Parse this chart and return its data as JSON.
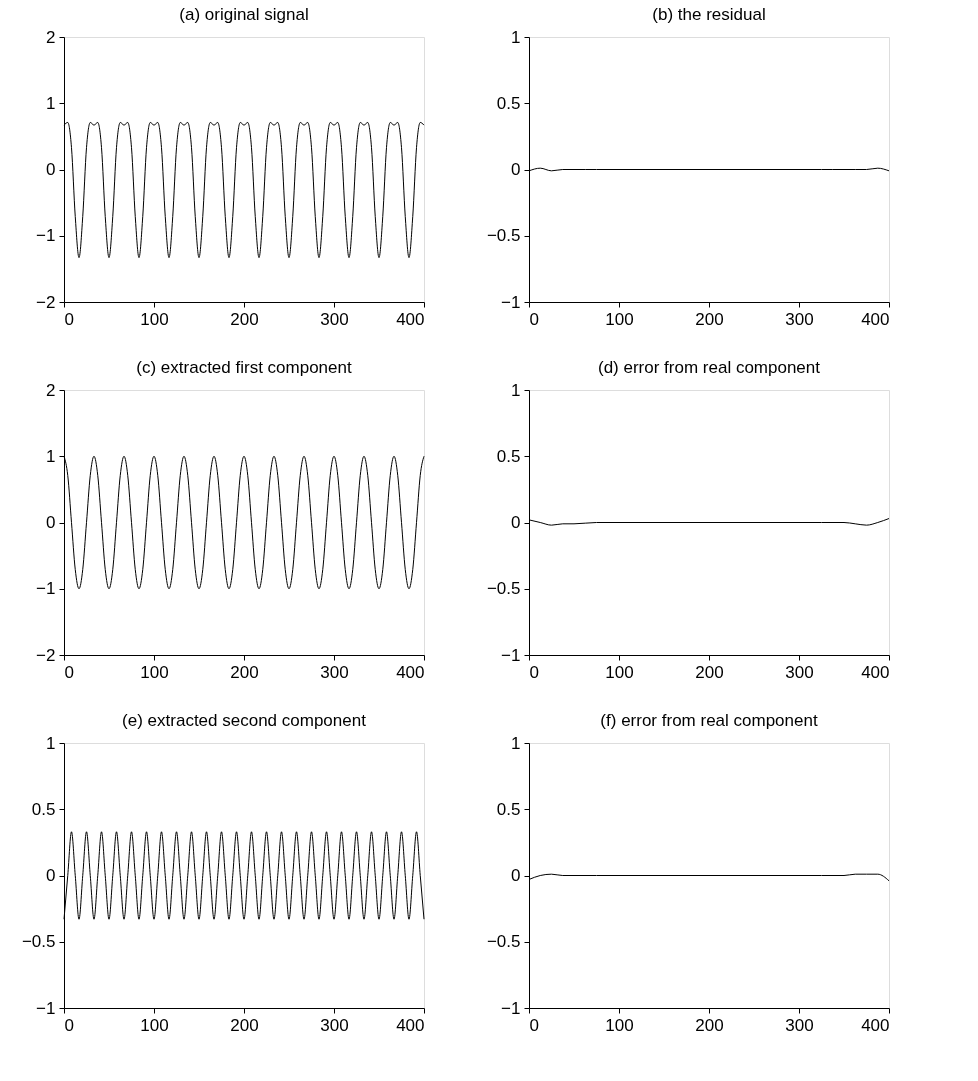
{
  "chart_data": [
    {
      "type": "line",
      "title": "(a) original signal",
      "xlim": [
        0,
        400
      ],
      "ylim": [
        -2,
        2
      ],
      "xticks": [
        0,
        100,
        200,
        300,
        400
      ],
      "yticks": [
        -2,
        -1,
        0,
        1,
        2
      ],
      "grid": false,
      "x": [
        0,
        4.17,
        8.33,
        12.5,
        16.67,
        20.83,
        25,
        29.17,
        33.33,
        37.5,
        41.67,
        45.83,
        50,
        54.17,
        58.33,
        62.5,
        66.67,
        70.83,
        75,
        79.17,
        83.33,
        87.5,
        91.67,
        95.83,
        100,
        104.17,
        108.33,
        112.5,
        116.67,
        120.83,
        125,
        129.17,
        133.33,
        137.5,
        141.67,
        145.83,
        150,
        154.17,
        158.33,
        162.5,
        166.67,
        170.83,
        175,
        179.17,
        183.33,
        187.5,
        191.67,
        195.83,
        200,
        204.17,
        208.33,
        212.5,
        216.67,
        220.83,
        225,
        229.17,
        233.33,
        237.5,
        241.67,
        245.83,
        250,
        254.17,
        258.33,
        262.5,
        266.67,
        270.83,
        275,
        279.17,
        283.33,
        287.5,
        291.67,
        295.83,
        300,
        304.17,
        308.33,
        312.5,
        316.67,
        320.83,
        325,
        329.17,
        333.33,
        337.5,
        341.67,
        345.83,
        350,
        354.17,
        358.33,
        362.5,
        366.67,
        370.83,
        375,
        379.17,
        383.33,
        387.5,
        391.67,
        395.83,
        400
      ],
      "series": [
        {
          "color": "#000000",
          "values": [
            0.67,
            0.71,
            0.33,
            -0.71,
            -1.33,
            -0.71,
            0.33,
            0.71,
            0.67,
            0.71,
            0.33,
            -0.71,
            -1.33,
            -0.71,
            0.33,
            0.71,
            0.67,
            0.71,
            0.33,
            -0.71,
            -1.33,
            -0.71,
            0.33,
            0.71,
            0.67,
            0.71,
            0.33,
            -0.71,
            -1.33,
            -0.71,
            0.33,
            0.71,
            0.67,
            0.71,
            0.33,
            -0.71,
            -1.33,
            -0.71,
            0.33,
            0.71,
            0.67,
            0.71,
            0.33,
            -0.71,
            -1.33,
            -0.71,
            0.33,
            0.71,
            0.67,
            0.71,
            0.33,
            -0.71,
            -1.33,
            -0.71,
            0.33,
            0.71,
            0.67,
            0.71,
            0.33,
            -0.71,
            -1.33,
            -0.71,
            0.33,
            0.71,
            0.67,
            0.71,
            0.33,
            -0.71,
            -1.33,
            -0.71,
            0.33,
            0.71,
            0.67,
            0.71,
            0.33,
            -0.71,
            -1.33,
            -0.71,
            0.33,
            0.71,
            0.67,
            0.71,
            0.33,
            -0.71,
            -1.33,
            -0.71,
            0.33,
            0.71,
            0.67,
            0.71,
            0.33,
            -0.71,
            -1.33,
            -0.71,
            0.33,
            0.71,
            0.67
          ]
        }
      ]
    },
    {
      "type": "line",
      "title": "(b) the residual",
      "xlim": [
        0,
        400
      ],
      "ylim": [
        -1,
        1
      ],
      "xticks": [
        0,
        100,
        200,
        300,
        400
      ],
      "yticks": [
        -1,
        -0.5,
        0,
        0.5,
        1
      ],
      "grid": false,
      "x": [
        0,
        12.5,
        25,
        37.5,
        50,
        62.5,
        75,
        100,
        150,
        200,
        250,
        300,
        325,
        337.5,
        350,
        362.5,
        375,
        387.5,
        400
      ],
      "series": [
        {
          "color": "#000000",
          "values": [
            -0.01,
            0.01,
            -0.01,
            0,
            0,
            0,
            0,
            0,
            0,
            0,
            0,
            0,
            0,
            0,
            0,
            0,
            0,
            0.01,
            -0.01
          ]
        }
      ]
    },
    {
      "type": "line",
      "title": "(c) extracted first component",
      "xlim": [
        0,
        400
      ],
      "ylim": [
        -2,
        2
      ],
      "xticks": [
        0,
        100,
        200,
        300,
        400
      ],
      "yticks": [
        -2,
        -1,
        0,
        1,
        2
      ],
      "grid": false,
      "x": [
        0,
        4.17,
        8.33,
        12.5,
        16.67,
        20.83,
        25,
        29.17,
        33.33,
        37.5,
        41.67,
        45.83,
        50,
        54.17,
        58.33,
        62.5,
        66.67,
        70.83,
        75,
        79.17,
        83.33,
        87.5,
        91.67,
        95.83,
        100,
        104.17,
        108.33,
        112.5,
        116.67,
        120.83,
        125,
        129.17,
        133.33,
        137.5,
        141.67,
        145.83,
        150,
        154.17,
        158.33,
        162.5,
        166.67,
        170.83,
        175,
        179.17,
        183.33,
        187.5,
        191.67,
        195.83,
        200,
        204.17,
        208.33,
        212.5,
        216.67,
        220.83,
        225,
        229.17,
        233.33,
        237.5,
        241.67,
        245.83,
        250,
        254.17,
        258.33,
        262.5,
        266.67,
        270.83,
        275,
        279.17,
        283.33,
        287.5,
        291.67,
        295.83,
        300,
        304.17,
        308.33,
        312.5,
        316.67,
        320.83,
        325,
        329.17,
        333.33,
        337.5,
        341.67,
        345.83,
        350,
        354.17,
        358.33,
        362.5,
        366.67,
        370.83,
        375,
        379.17,
        383.33,
        387.5,
        391.67,
        395.83,
        400
      ],
      "series": [
        {
          "color": "#000000",
          "values": [
            1,
            0.71,
            0,
            -0.71,
            -1,
            -0.71,
            0,
            0.71,
            1,
            0.71,
            0,
            -0.71,
            -1,
            -0.71,
            0,
            0.71,
            1,
            0.71,
            0,
            -0.71,
            -1,
            -0.71,
            0,
            0.71,
            1,
            0.71,
            0,
            -0.71,
            -1,
            -0.71,
            0,
            0.71,
            1,
            0.71,
            0,
            -0.71,
            -1,
            -0.71,
            0,
            0.71,
            1,
            0.71,
            0,
            -0.71,
            -1,
            -0.71,
            0,
            0.71,
            1,
            0.71,
            0,
            -0.71,
            -1,
            -0.71,
            0,
            0.71,
            1,
            0.71,
            0,
            -0.71,
            -1,
            -0.71,
            0,
            0.71,
            1,
            0.71,
            0,
            -0.71,
            -1,
            -0.71,
            0,
            0.71,
            1,
            0.71,
            0,
            -0.71,
            -1,
            -0.71,
            0,
            0.71,
            1,
            0.71,
            0,
            -0.71,
            -1,
            -0.71,
            0,
            0.71,
            1,
            0.71,
            0,
            -0.71,
            -1,
            -0.71,
            0,
            0.71,
            1
          ]
        }
      ]
    },
    {
      "type": "line",
      "title": "(d) error from real component",
      "xlim": [
        0,
        400
      ],
      "ylim": [
        -1,
        1
      ],
      "xticks": [
        0,
        100,
        200,
        300,
        400
      ],
      "yticks": [
        -1,
        -0.5,
        0,
        0.5,
        1
      ],
      "grid": false,
      "x": [
        0,
        12.5,
        25,
        37.5,
        50,
        75,
        100,
        150,
        200,
        250,
        300,
        325,
        350,
        362.5,
        375,
        387.5,
        400
      ],
      "series": [
        {
          "color": "#000000",
          "values": [
            0.02,
            0,
            -0.02,
            -0.01,
            -0.01,
            0,
            0,
            0,
            0,
            0,
            0,
            0,
            0,
            -0.01,
            -0.02,
            0,
            0.03
          ]
        }
      ]
    },
    {
      "type": "line",
      "title": "(e) extracted second component",
      "xlim": [
        0,
        400
      ],
      "ylim": [
        -1,
        1
      ],
      "xticks": [
        0,
        100,
        200,
        300,
        400
      ],
      "yticks": [
        -1,
        -0.5,
        0,
        0.5,
        1
      ],
      "grid": false,
      "x": [
        0,
        4.17,
        8.33,
        12.5,
        16.67,
        20.83,
        25,
        29.17,
        33.33,
        37.5,
        41.67,
        45.83,
        50,
        54.17,
        58.33,
        62.5,
        66.67,
        70.83,
        75,
        79.17,
        83.33,
        87.5,
        91.67,
        95.83,
        100,
        104.17,
        108.33,
        112.5,
        116.67,
        120.83,
        125,
        129.17,
        133.33,
        137.5,
        141.67,
        145.83,
        150,
        154.17,
        158.33,
        162.5,
        166.67,
        170.83,
        175,
        179.17,
        183.33,
        187.5,
        191.67,
        195.83,
        200,
        204.17,
        208.33,
        212.5,
        216.67,
        220.83,
        225,
        229.17,
        233.33,
        237.5,
        241.67,
        245.83,
        250,
        254.17,
        258.33,
        262.5,
        266.67,
        270.83,
        275,
        279.17,
        283.33,
        287.5,
        291.67,
        295.83,
        300,
        304.17,
        308.33,
        312.5,
        316.67,
        320.83,
        325,
        329.17,
        333.33,
        337.5,
        341.67,
        345.83,
        350,
        354.17,
        358.33,
        362.5,
        366.67,
        370.83,
        375,
        379.17,
        383.33,
        387.5,
        391.67,
        395.83,
        400
      ],
      "series": [
        {
          "color": "#000000",
          "values": [
            -0.33,
            0,
            0.33,
            0,
            -0.33,
            0,
            0.33,
            0,
            -0.33,
            0,
            0.33,
            0,
            -0.33,
            0,
            0.33,
            0,
            -0.33,
            0,
            0.33,
            0,
            -0.33,
            0,
            0.33,
            0,
            -0.33,
            0,
            0.33,
            0,
            -0.33,
            0,
            0.33,
            0,
            -0.33,
            0,
            0.33,
            0,
            -0.33,
            0,
            0.33,
            0,
            -0.33,
            0,
            0.33,
            0,
            -0.33,
            0,
            0.33,
            0,
            -0.33,
            0,
            0.33,
            0,
            -0.33,
            0,
            0.33,
            0,
            -0.33,
            0,
            0.33,
            0,
            -0.33,
            0,
            0.33,
            0,
            -0.33,
            0,
            0.33,
            0,
            -0.33,
            0,
            0.33,
            0,
            -0.33,
            0,
            0.33,
            0,
            -0.33,
            0,
            0.33,
            0,
            -0.33,
            0,
            0.33,
            0,
            -0.33,
            0,
            0.33,
            0,
            -0.33,
            0,
            0.33,
            0,
            -0.33,
            0,
            0.33,
            0,
            -0.33
          ]
        }
      ]
    },
    {
      "type": "line",
      "title": "(f) error from real component",
      "xlim": [
        0,
        400
      ],
      "ylim": [
        -1,
        1
      ],
      "xticks": [
        0,
        100,
        200,
        300,
        400
      ],
      "yticks": [
        -1,
        -0.5,
        0,
        0.5,
        1
      ],
      "grid": false,
      "x": [
        0,
        12.5,
        25,
        37.5,
        50,
        75,
        100,
        150,
        200,
        250,
        300,
        325,
        350,
        362.5,
        375,
        387.5,
        400
      ],
      "series": [
        {
          "color": "#000000",
          "values": [
            -0.03,
            0,
            0.01,
            0,
            0,
            0,
            0,
            0,
            0,
            0,
            0,
            0,
            0,
            0.01,
            0.01,
            0.01,
            -0.04
          ]
        }
      ]
    }
  ]
}
